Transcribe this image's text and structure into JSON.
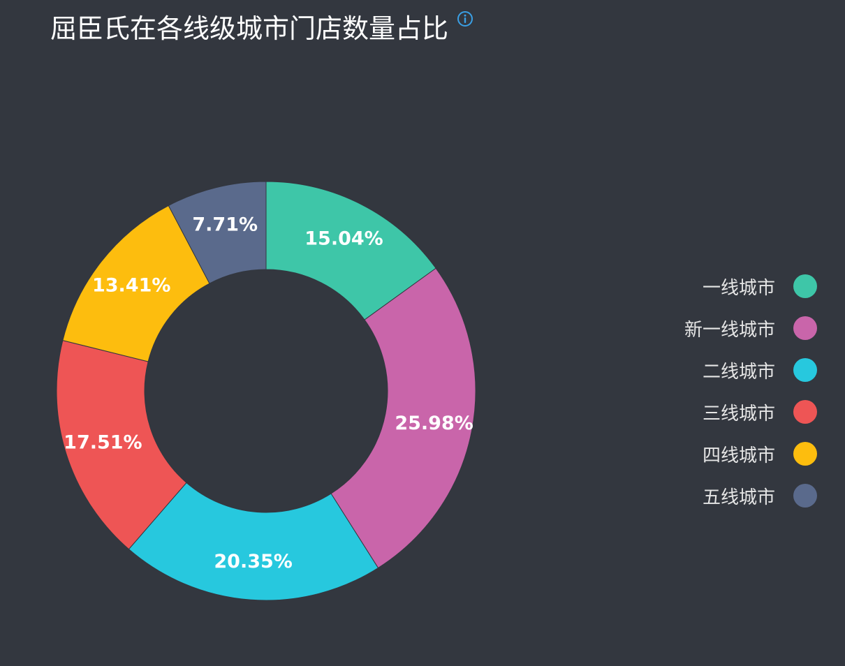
{
  "chart_data": {
    "type": "pie",
    "subtype": "donut",
    "title": "屈臣氏在各线级城市门店数量占比",
    "categories": [
      "一线城市",
      "新一线城市",
      "二线城市",
      "三线城市",
      "四线城市",
      "五线城市"
    ],
    "values": [
      15.04,
      25.98,
      20.35,
      17.51,
      13.41,
      7.71
    ],
    "data_labels": [
      "15.04%",
      "25.98%",
      "20.35%",
      "17.51%",
      "13.41%",
      "7.71%"
    ],
    "colors": [
      "#3ec6a8",
      "#c965aa",
      "#27c8de",
      "#ee5555",
      "#fdbd0e",
      "#5a6a8c"
    ],
    "legend_position": "right",
    "start_angle": "top",
    "direction": "clockwise"
  },
  "icons": {
    "title_info": "info-icon"
  }
}
